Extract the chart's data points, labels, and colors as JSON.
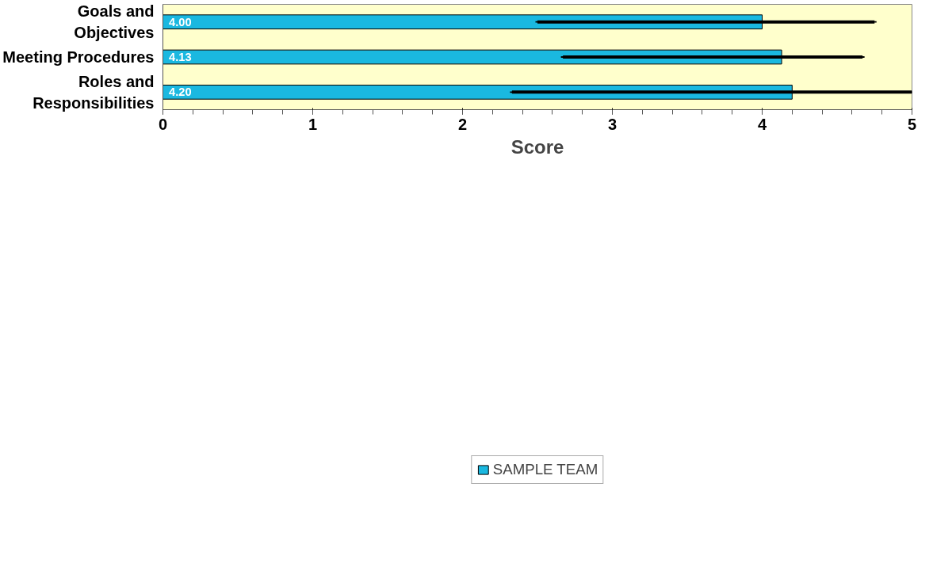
{
  "chart_data": {
    "type": "bar",
    "orientation": "horizontal",
    "xlabel": "Score",
    "categories": [
      "Goals and Objectives",
      "Meeting Procedures",
      "Roles and Responsibilities"
    ],
    "series": [
      {
        "name": "SAMPLE TEAM",
        "color": "#1ab8e0",
        "values": [
          4.0,
          4.13,
          4.2
        ],
        "value_labels": [
          "4.00",
          "4.13",
          "4.20"
        ],
        "errors": [
          [
            2.5,
            4.75
          ],
          [
            2.67,
            4.67
          ],
          [
            2.33,
            5.0
          ]
        ]
      }
    ],
    "xlim": [
      0,
      5
    ],
    "xticks": [
      0,
      1,
      2,
      3,
      4,
      5
    ],
    "grid": false,
    "legend": "bottom"
  }
}
